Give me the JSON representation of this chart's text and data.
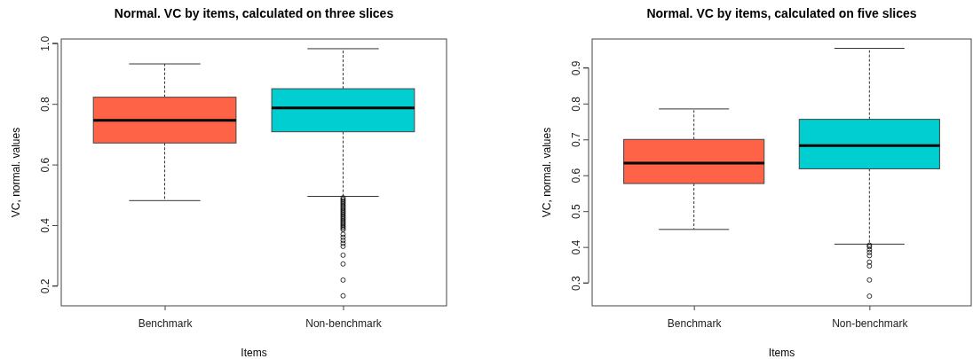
{
  "chart_data": [
    {
      "type": "box",
      "title": "Normal. VC by items, calculated on three slices",
      "xlabel": "Items",
      "ylabel": "VC, normal. values",
      "categories": [
        "Benchmark",
        "Non-benchmark"
      ],
      "colors": [
        "#ff6347",
        "#00ced1"
      ],
      "ylim": [
        0.134,
        1.014
      ],
      "yticks": [
        0.2,
        0.4,
        0.6,
        0.8,
        {
          "value": 1,
          "label": "1.0"
        }
      ],
      "grid": false,
      "boxes": [
        {
          "low": 0.481,
          "q1": 0.671,
          "median": 0.746,
          "q3": 0.822,
          "high": 0.932
        },
        {
          "low": 0.495,
          "q1": 0.708,
          "median": 0.787,
          "q3": 0.85,
          "high": 0.982,
          "outliers": [
            0.49,
            0.485,
            0.48,
            0.475,
            0.47,
            0.465,
            0.46,
            0.455,
            0.45,
            0.445,
            0.44,
            0.435,
            0.43,
            0.425,
            0.42,
            0.415,
            0.41,
            0.405,
            0.4,
            0.395,
            0.39,
            0.385,
            0.37,
            0.36,
            0.35,
            0.34,
            0.33,
            0.301,
            0.272,
            0.219,
            0.167
          ]
        }
      ]
    },
    {
      "type": "box",
      "title": "Normal. VC by items, calculated on five slices",
      "xlabel": "Items",
      "ylabel": "VC, normal. values",
      "categories": [
        "Benchmark",
        "Non-benchmark"
      ],
      "colors": [
        "#ff6347",
        "#00ced1"
      ],
      "ylim": [
        0.236,
        0.98
      ],
      "yticks": [
        0.3,
        0.4,
        0.5,
        0.6,
        0.7,
        0.8,
        0.9
      ],
      "grid": false,
      "boxes": [
        {
          "low": 0.449,
          "q1": 0.577,
          "median": 0.634,
          "q3": 0.7,
          "high": 0.785
        },
        {
          "low": 0.408,
          "q1": 0.618,
          "median": 0.683,
          "q3": 0.756,
          "high": 0.954,
          "outliers": [
            0.405,
            0.401,
            0.393,
            0.385,
            0.376,
            0.358,
            0.347,
            0.308,
            0.263
          ]
        }
      ]
    }
  ]
}
